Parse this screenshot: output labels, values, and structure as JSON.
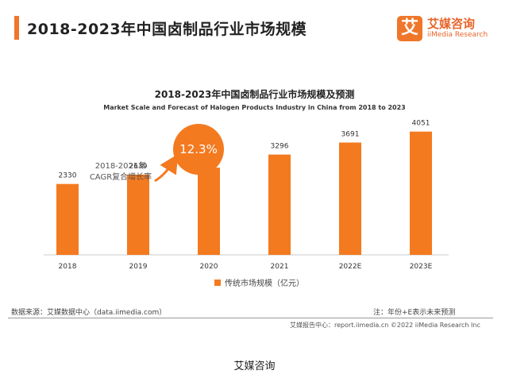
{
  "page_title": "2018-2023年中国卤制品行业市场规模",
  "logo": {
    "mark": "艾",
    "name_cn": "艾媒咨询",
    "name_en": "iiMedia Research"
  },
  "chart_data": {
    "type": "bar",
    "title": "2018-2023年中国卤制品行业市场规模及预测",
    "subtitle": "Market Scale and Forecast of Halogen Products Industry in China from 2018  to 2023",
    "categories": [
      "2018",
      "2019",
      "2020",
      "2021",
      "2022E",
      "2023E"
    ],
    "series": [
      {
        "name": "传统市场规模（亿元）",
        "values": [
          2330,
          2639,
          2867,
          3296,
          3691,
          4051
        ],
        "color": "#f47a20"
      }
    ],
    "ylim": [
      0,
      4200
    ],
    "grid": false,
    "legend_position": "bottom-center",
    "annotation": {
      "label_line1": "2018-2021年",
      "label_line2": "CAGR复合增长率",
      "value": "12.3%"
    }
  },
  "footer": {
    "source": "数据来源：艾媒数据中心（data.iimedia.com）",
    "note": "注：年份+E表示未来预测",
    "copyright": "艾媒报告中心：report.iimedia.cn    ©2022  iiMedia Research  Inc"
  },
  "caption": "艾媒咨询"
}
